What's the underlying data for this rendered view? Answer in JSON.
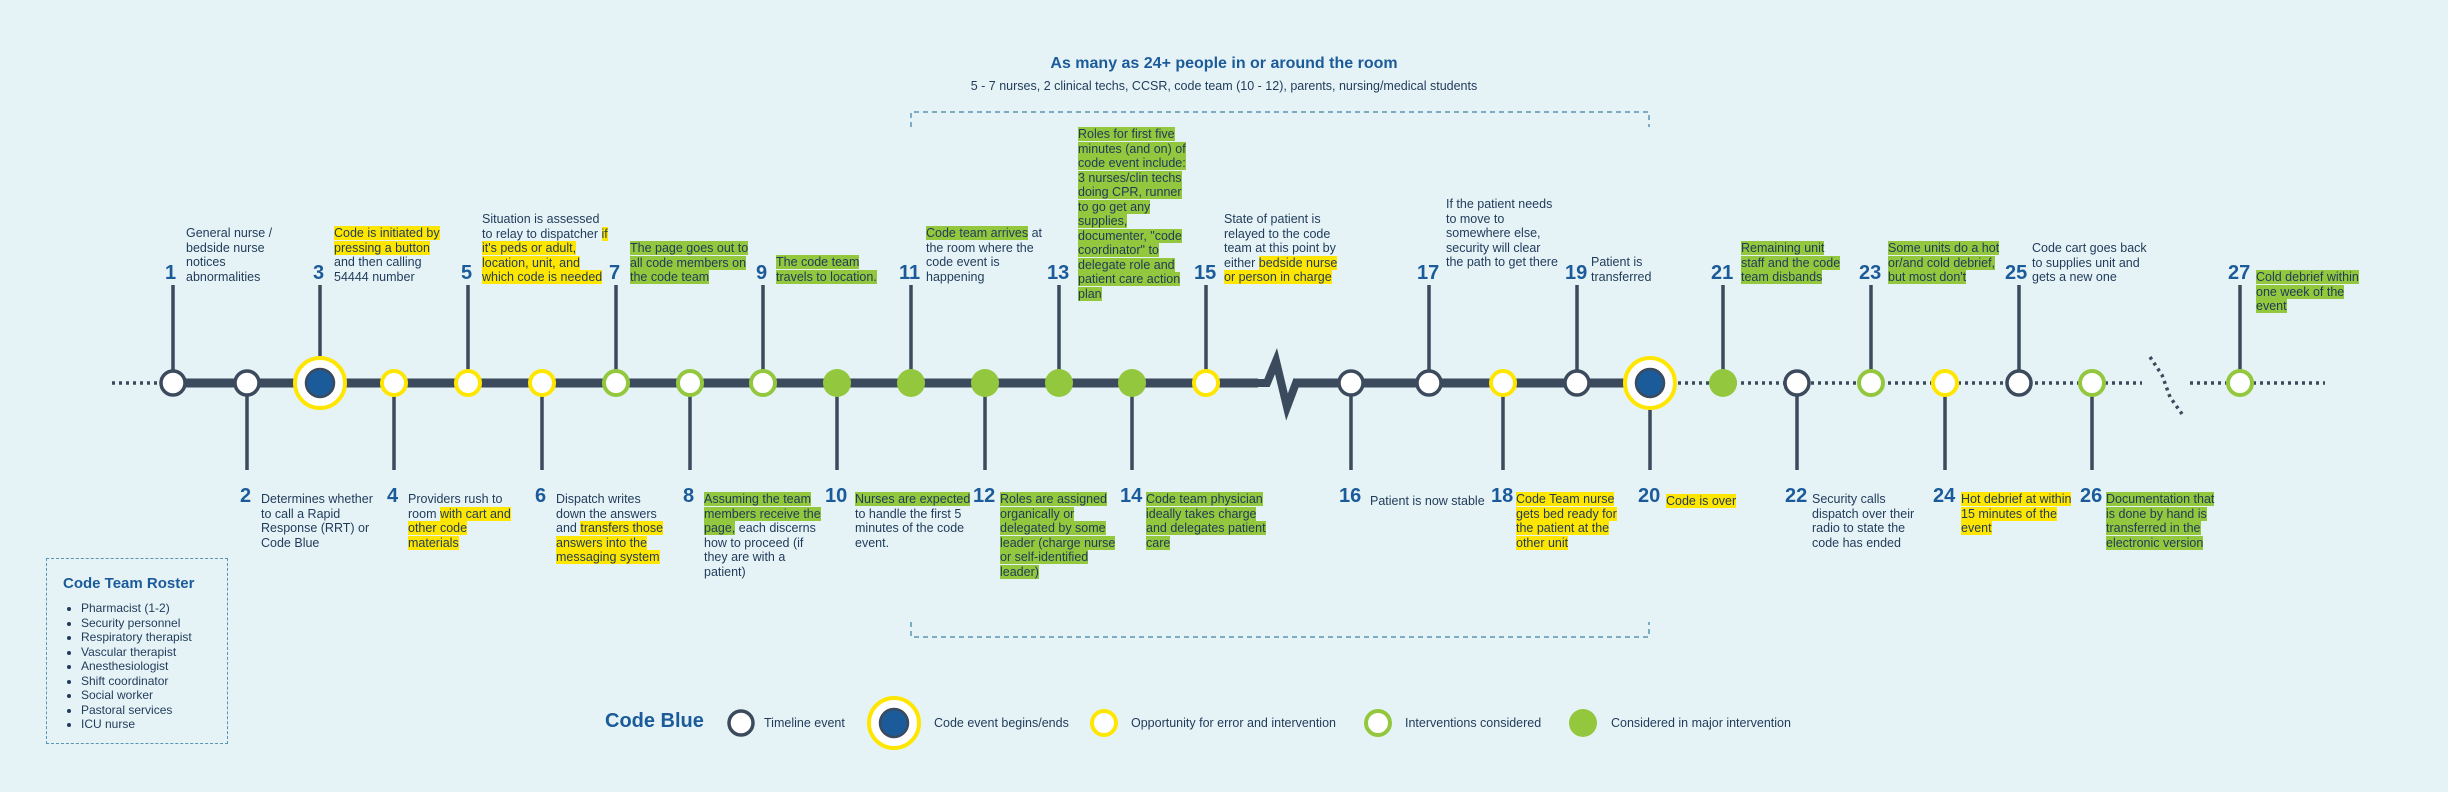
{
  "header": {
    "title": "As many as 24+ people in or around the room",
    "subtitle": "5 - 7 nurses, 2 clinical techs, CCSR, code team (10 - 12), parents, nursing/medical students"
  },
  "colors": {
    "navy": "#3b4a5c",
    "blue": "#1b5b9a",
    "yellow": "#ffe600",
    "green": "#93c83e",
    "background": "#e6f3f6"
  },
  "events": [
    {
      "n": "1",
      "pos": "top",
      "marker": "timeline",
      "parts": [
        {
          "t": "General nurse / bedside nurse notices abnormalities"
        }
      ]
    },
    {
      "n": "2",
      "pos": "bottom",
      "marker": "timeline",
      "parts": [
        {
          "t": "Determines whether to call a Rapid Response (RRT) or Code Blue"
        }
      ]
    },
    {
      "n": "3",
      "pos": "top",
      "marker": "begin",
      "parts": [
        {
          "t": "Code is initiated by pressing a button",
          "h": "y"
        },
        {
          "t": " and then calling 54444 number"
        }
      ]
    },
    {
      "n": "4",
      "pos": "bottom",
      "marker": "opportunity",
      "parts": [
        {
          "t": "Providers rush to room "
        },
        {
          "t": "with cart and other code materials",
          "h": "y"
        }
      ]
    },
    {
      "n": "5",
      "pos": "top",
      "marker": "opportunity",
      "parts": [
        {
          "t": "Situation is assessed to relay to dispatcher "
        },
        {
          "t": "if it's peds or adult, location, unit, and which code is needed",
          "h": "y"
        }
      ]
    },
    {
      "n": "6",
      "pos": "bottom",
      "marker": "opportunity",
      "parts": [
        {
          "t": "Dispatch writes down the answers and "
        },
        {
          "t": "transfers those answers into the messaging system",
          "h": "y"
        }
      ]
    },
    {
      "n": "7",
      "pos": "top",
      "marker": "considered",
      "parts": [
        {
          "t": "The page goes out to all code members on the code team",
          "h": "g"
        }
      ]
    },
    {
      "n": "8",
      "pos": "bottom",
      "marker": "considered",
      "parts": [
        {
          "t": "Assuming the team members receive the page,",
          "h": "g"
        },
        {
          "t": " each discerns how to proceed (if they are with a patient)"
        }
      ]
    },
    {
      "n": "9",
      "pos": "top",
      "marker": "considered",
      "parts": [
        {
          "t": "The code team travels to location.",
          "h": "g"
        }
      ]
    },
    {
      "n": "10",
      "pos": "bottom",
      "marker": "major",
      "parts": [
        {
          "t": "Nurses are expected",
          "h": "g"
        },
        {
          "t": " to handle the first 5 minutes of the code event."
        }
      ]
    },
    {
      "n": "11",
      "pos": "top",
      "marker": "major",
      "parts": [
        {
          "t": "Code team arrives",
          "h": "g"
        },
        {
          "t": " at the room where the code event is happening"
        }
      ]
    },
    {
      "n": "12",
      "pos": "bottom",
      "marker": "major",
      "parts": [
        {
          "t": "Roles are assigned organically or delegated by some leader (charge nurse or self-identified leader)",
          "h": "g"
        }
      ]
    },
    {
      "n": "13",
      "pos": "top",
      "marker": "major",
      "parts": [
        {
          "t": "Roles for first five minutes (and on) of code event include: 3 nurses/clin techs doing CPR, runner to go get any supplies, documenter, \"code coordinator\" to delegate role and patient care action plan",
          "h": "g"
        }
      ]
    },
    {
      "n": "14",
      "pos": "bottom",
      "marker": "major",
      "parts": [
        {
          "t": "Code team physician ideally takes charge and delegates patient care",
          "h": "g"
        }
      ]
    },
    {
      "n": "15",
      "pos": "top",
      "marker": "opportunity",
      "parts": [
        {
          "t": "State of patient is relayed to the code team at this point by either "
        },
        {
          "t": "bedside nurse or person in charge",
          "h": "y"
        }
      ]
    },
    {
      "n": "16",
      "pos": "bottom",
      "marker": "timeline",
      "parts": [
        {
          "t": "Patient is now stable"
        }
      ]
    },
    {
      "n": "17",
      "pos": "top",
      "marker": "timeline",
      "parts": [
        {
          "t": "If the patient needs to move to somewhere else, security will clear the path to get there"
        }
      ]
    },
    {
      "n": "18",
      "pos": "bottom",
      "marker": "opportunity",
      "parts": [
        {
          "t": "Code Team nurse gets bed ready for the patient at the other unit",
          "h": "y"
        }
      ]
    },
    {
      "n": "19",
      "pos": "top",
      "marker": "timeline",
      "parts": [
        {
          "t": "Patient is transferred"
        }
      ]
    },
    {
      "n": "20",
      "pos": "bottom",
      "marker": "begin",
      "parts": [
        {
          "t": "Code is over",
          "h": "y"
        }
      ]
    },
    {
      "n": "21",
      "pos": "top",
      "marker": "major",
      "parts": [
        {
          "t": "Remaining unit staff and the code team disbands",
          "h": "g"
        }
      ]
    },
    {
      "n": "22",
      "pos": "bottom",
      "marker": "timeline",
      "parts": [
        {
          "t": "Security calls dispatch over their radio to state the code has ended"
        }
      ]
    },
    {
      "n": "23",
      "pos": "top",
      "marker": "considered",
      "parts": [
        {
          "t": "Some units do a hot or/and cold debrief, but most don't",
          "h": "g"
        }
      ]
    },
    {
      "n": "24",
      "pos": "bottom",
      "marker": "opportunity",
      "parts": [
        {
          "t": "Hot debrief at within 15 minutes of the event",
          "h": "y"
        }
      ]
    },
    {
      "n": "25",
      "pos": "top",
      "marker": "timeline",
      "parts": [
        {
          "t": "Code cart goes back to supplies unit and gets a new one"
        }
      ]
    },
    {
      "n": "26",
      "pos": "bottom",
      "marker": "considered",
      "parts": [
        {
          "t": "Documentation that is done by hand is transferred in the electronic version",
          "h": "g"
        }
      ]
    },
    {
      "n": "27",
      "pos": "top",
      "marker": "considered",
      "parts": [
        {
          "t": "Cold debrief within one week of the event",
          "h": "g"
        }
      ]
    }
  ],
  "roster": {
    "title": "Code Team Roster",
    "items": [
      "Pharmacist (1-2)",
      "Security personnel",
      "Respiratory therapist",
      "Vascular therapist",
      "Anesthesiologist",
      "Shift coordinator",
      "Social worker",
      "Pastoral services",
      "ICU nurse"
    ]
  },
  "legend": {
    "title": "Code Blue",
    "items": [
      {
        "marker": "timeline",
        "label": "Timeline event"
      },
      {
        "marker": "begin",
        "label": "Code event begins/ends"
      },
      {
        "marker": "opportunity",
        "label": "Opportunity for error and intervention"
      },
      {
        "marker": "considered",
        "label": "Interventions considered"
      },
      {
        "marker": "major",
        "label": "Considered in major intervention"
      }
    ]
  }
}
